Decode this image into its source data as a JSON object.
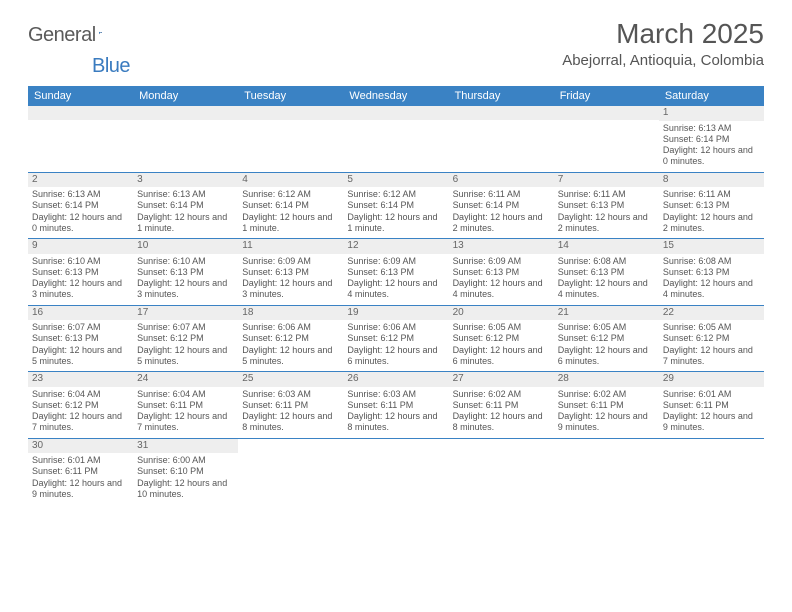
{
  "logo": {
    "part1": "General",
    "part2": "Blue"
  },
  "title": "March 2025",
  "location": "Abejorral, Antioquia, Colombia",
  "colors": {
    "header_bg": "#3a82c4",
    "header_text": "#ffffff",
    "grid_line": "#3a82c4",
    "daynum_bg": "#eeeeee",
    "text": "#555555",
    "logo_accent": "#3a7bbf"
  },
  "weekdays": [
    "Sunday",
    "Monday",
    "Tuesday",
    "Wednesday",
    "Thursday",
    "Friday",
    "Saturday"
  ],
  "weeks": [
    [
      {
        "day": "",
        "sunrise": "",
        "sunset": "",
        "daylight": ""
      },
      {
        "day": "",
        "sunrise": "",
        "sunset": "",
        "daylight": ""
      },
      {
        "day": "",
        "sunrise": "",
        "sunset": "",
        "daylight": ""
      },
      {
        "day": "",
        "sunrise": "",
        "sunset": "",
        "daylight": ""
      },
      {
        "day": "",
        "sunrise": "",
        "sunset": "",
        "daylight": ""
      },
      {
        "day": "",
        "sunrise": "",
        "sunset": "",
        "daylight": ""
      },
      {
        "day": "1",
        "sunrise": "Sunrise: 6:13 AM",
        "sunset": "Sunset: 6:14 PM",
        "daylight": "Daylight: 12 hours and 0 minutes."
      }
    ],
    [
      {
        "day": "2",
        "sunrise": "Sunrise: 6:13 AM",
        "sunset": "Sunset: 6:14 PM",
        "daylight": "Daylight: 12 hours and 0 minutes."
      },
      {
        "day": "3",
        "sunrise": "Sunrise: 6:13 AM",
        "sunset": "Sunset: 6:14 PM",
        "daylight": "Daylight: 12 hours and 1 minute."
      },
      {
        "day": "4",
        "sunrise": "Sunrise: 6:12 AM",
        "sunset": "Sunset: 6:14 PM",
        "daylight": "Daylight: 12 hours and 1 minute."
      },
      {
        "day": "5",
        "sunrise": "Sunrise: 6:12 AM",
        "sunset": "Sunset: 6:14 PM",
        "daylight": "Daylight: 12 hours and 1 minute."
      },
      {
        "day": "6",
        "sunrise": "Sunrise: 6:11 AM",
        "sunset": "Sunset: 6:14 PM",
        "daylight": "Daylight: 12 hours and 2 minutes."
      },
      {
        "day": "7",
        "sunrise": "Sunrise: 6:11 AM",
        "sunset": "Sunset: 6:13 PM",
        "daylight": "Daylight: 12 hours and 2 minutes."
      },
      {
        "day": "8",
        "sunrise": "Sunrise: 6:11 AM",
        "sunset": "Sunset: 6:13 PM",
        "daylight": "Daylight: 12 hours and 2 minutes."
      }
    ],
    [
      {
        "day": "9",
        "sunrise": "Sunrise: 6:10 AM",
        "sunset": "Sunset: 6:13 PM",
        "daylight": "Daylight: 12 hours and 3 minutes."
      },
      {
        "day": "10",
        "sunrise": "Sunrise: 6:10 AM",
        "sunset": "Sunset: 6:13 PM",
        "daylight": "Daylight: 12 hours and 3 minutes."
      },
      {
        "day": "11",
        "sunrise": "Sunrise: 6:09 AM",
        "sunset": "Sunset: 6:13 PM",
        "daylight": "Daylight: 12 hours and 3 minutes."
      },
      {
        "day": "12",
        "sunrise": "Sunrise: 6:09 AM",
        "sunset": "Sunset: 6:13 PM",
        "daylight": "Daylight: 12 hours and 4 minutes."
      },
      {
        "day": "13",
        "sunrise": "Sunrise: 6:09 AM",
        "sunset": "Sunset: 6:13 PM",
        "daylight": "Daylight: 12 hours and 4 minutes."
      },
      {
        "day": "14",
        "sunrise": "Sunrise: 6:08 AM",
        "sunset": "Sunset: 6:13 PM",
        "daylight": "Daylight: 12 hours and 4 minutes."
      },
      {
        "day": "15",
        "sunrise": "Sunrise: 6:08 AM",
        "sunset": "Sunset: 6:13 PM",
        "daylight": "Daylight: 12 hours and 4 minutes."
      }
    ],
    [
      {
        "day": "16",
        "sunrise": "Sunrise: 6:07 AM",
        "sunset": "Sunset: 6:13 PM",
        "daylight": "Daylight: 12 hours and 5 minutes."
      },
      {
        "day": "17",
        "sunrise": "Sunrise: 6:07 AM",
        "sunset": "Sunset: 6:12 PM",
        "daylight": "Daylight: 12 hours and 5 minutes."
      },
      {
        "day": "18",
        "sunrise": "Sunrise: 6:06 AM",
        "sunset": "Sunset: 6:12 PM",
        "daylight": "Daylight: 12 hours and 5 minutes."
      },
      {
        "day": "19",
        "sunrise": "Sunrise: 6:06 AM",
        "sunset": "Sunset: 6:12 PM",
        "daylight": "Daylight: 12 hours and 6 minutes."
      },
      {
        "day": "20",
        "sunrise": "Sunrise: 6:05 AM",
        "sunset": "Sunset: 6:12 PM",
        "daylight": "Daylight: 12 hours and 6 minutes."
      },
      {
        "day": "21",
        "sunrise": "Sunrise: 6:05 AM",
        "sunset": "Sunset: 6:12 PM",
        "daylight": "Daylight: 12 hours and 6 minutes."
      },
      {
        "day": "22",
        "sunrise": "Sunrise: 6:05 AM",
        "sunset": "Sunset: 6:12 PM",
        "daylight": "Daylight: 12 hours and 7 minutes."
      }
    ],
    [
      {
        "day": "23",
        "sunrise": "Sunrise: 6:04 AM",
        "sunset": "Sunset: 6:12 PM",
        "daylight": "Daylight: 12 hours and 7 minutes."
      },
      {
        "day": "24",
        "sunrise": "Sunrise: 6:04 AM",
        "sunset": "Sunset: 6:11 PM",
        "daylight": "Daylight: 12 hours and 7 minutes."
      },
      {
        "day": "25",
        "sunrise": "Sunrise: 6:03 AM",
        "sunset": "Sunset: 6:11 PM",
        "daylight": "Daylight: 12 hours and 8 minutes."
      },
      {
        "day": "26",
        "sunrise": "Sunrise: 6:03 AM",
        "sunset": "Sunset: 6:11 PM",
        "daylight": "Daylight: 12 hours and 8 minutes."
      },
      {
        "day": "27",
        "sunrise": "Sunrise: 6:02 AM",
        "sunset": "Sunset: 6:11 PM",
        "daylight": "Daylight: 12 hours and 8 minutes."
      },
      {
        "day": "28",
        "sunrise": "Sunrise: 6:02 AM",
        "sunset": "Sunset: 6:11 PM",
        "daylight": "Daylight: 12 hours and 9 minutes."
      },
      {
        "day": "29",
        "sunrise": "Sunrise: 6:01 AM",
        "sunset": "Sunset: 6:11 PM",
        "daylight": "Daylight: 12 hours and 9 minutes."
      }
    ],
    [
      {
        "day": "30",
        "sunrise": "Sunrise: 6:01 AM",
        "sunset": "Sunset: 6:11 PM",
        "daylight": "Daylight: 12 hours and 9 minutes."
      },
      {
        "day": "31",
        "sunrise": "Sunrise: 6:00 AM",
        "sunset": "Sunset: 6:10 PM",
        "daylight": "Daylight: 12 hours and 10 minutes."
      },
      {
        "day": "",
        "sunrise": "",
        "sunset": "",
        "daylight": ""
      },
      {
        "day": "",
        "sunrise": "",
        "sunset": "",
        "daylight": ""
      },
      {
        "day": "",
        "sunrise": "",
        "sunset": "",
        "daylight": ""
      },
      {
        "day": "",
        "sunrise": "",
        "sunset": "",
        "daylight": ""
      },
      {
        "day": "",
        "sunrise": "",
        "sunset": "",
        "daylight": ""
      }
    ]
  ]
}
